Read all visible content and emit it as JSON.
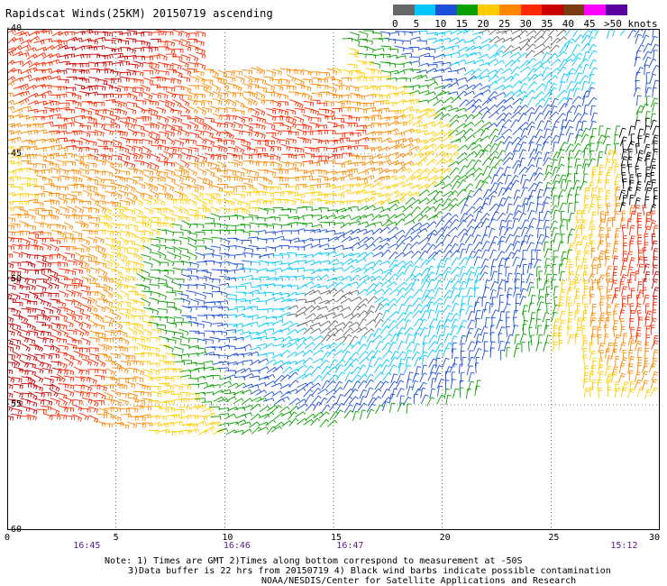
{
  "title": "Rapidscat Winds(25KM) 20150719 ascending",
  "legend": {
    "unit_label": ">50 knots",
    "ticks": [
      "0",
      "5",
      "10",
      "15",
      "20",
      "25",
      "30",
      "35",
      "40",
      "45"
    ],
    "colors": [
      "#666666",
      "#00c8ff",
      "#1e4fd8",
      "#0aa000",
      "#ffcc00",
      "#ff8800",
      "#ff2a00",
      "#cc0000",
      "#7a3b10",
      "#ff00ff",
      "#5a00a0"
    ]
  },
  "axes": {
    "lat_labels": [
      "-40",
      "-45",
      "-50",
      "-55",
      "-60"
    ],
    "lon_labels": [
      "0",
      "5",
      "10",
      "15",
      "20",
      "25",
      "30"
    ],
    "lat_range": [
      -40,
      -60
    ],
    "lon_range": [
      0,
      30
    ]
  },
  "times": [
    {
      "text": "16:45",
      "lon": 3.7
    },
    {
      "text": "16:46",
      "lon": 10.6
    },
    {
      "text": "16:47",
      "lon": 15.8
    },
    {
      "text": "15:12",
      "lon": 28.4
    }
  ],
  "footer": {
    "line1": "Note: 1) Times are GMT 2)Times along bottom correspond to measurement at -50S",
    "line2": "3)Data buffer is 22 hrs from 20150719 4) Black wind barbs indicate possible contamination",
    "line3": "NOAA/NESDIS/Center for Satellite Applications and Research"
  },
  "wind_field": {
    "barb_color_scale_knots": [
      0,
      5,
      10,
      15,
      20,
      25,
      30,
      35,
      40,
      45,
      50
    ],
    "regions": [
      {
        "lon": [
          0,
          30
        ],
        "lat": [
          -40,
          -57
        ],
        "dominant": "mixed"
      }
    ]
  }
}
